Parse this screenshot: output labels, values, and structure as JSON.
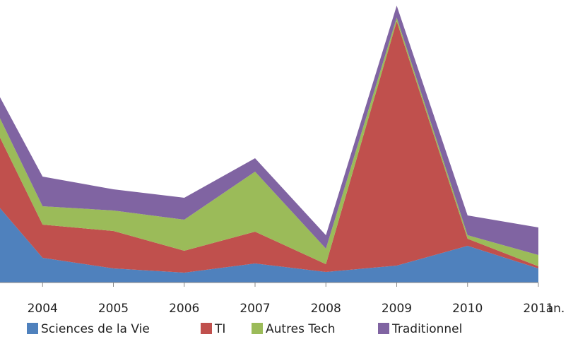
{
  "chart_data": {
    "type": "area",
    "stacked": true,
    "categories": [
      null,
      "2004",
      "2005",
      "2006",
      "2007",
      "2008",
      "2009",
      "2010",
      "2011"
    ],
    "x_label": "an.",
    "ylim": [
      0,
      400
    ],
    "series": [
      {
        "name": "Sciences de la Vie",
        "color": "#4f81bd",
        "values": [
          152,
          35,
          20,
          14,
          27,
          15,
          24,
          52,
          20
        ]
      },
      {
        "name": "TI",
        "color": "#c0504d",
        "values": [
          135,
          47,
          53,
          31,
          45,
          11,
          346,
          10,
          3
        ]
      },
      {
        "name": "Autres Tech",
        "color": "#9bbb59",
        "values": [
          28,
          26,
          29,
          44,
          85,
          22,
          5,
          5,
          16
        ]
      },
      {
        "name": "Traditionnel",
        "color": "#8064a2",
        "values": [
          22,
          42,
          30,
          31,
          19,
          19,
          17,
          28,
          39
        ]
      }
    ]
  }
}
